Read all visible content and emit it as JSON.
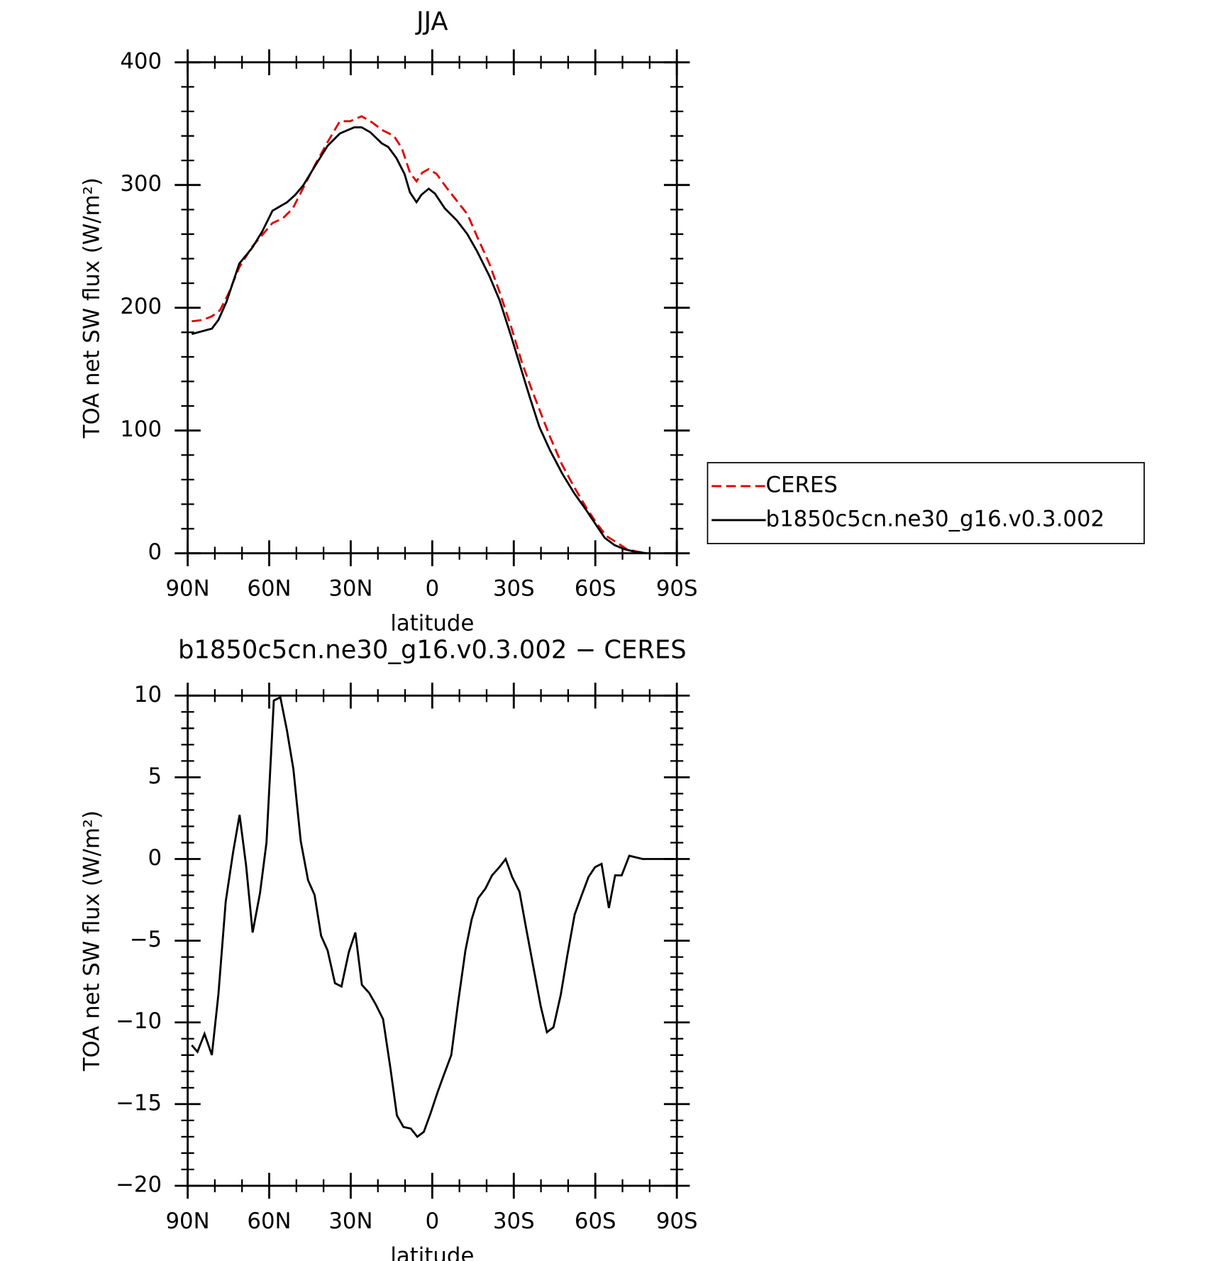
{
  "chart_data": [
    {
      "type": "line",
      "title": "JJA",
      "xlabel": "latitude",
      "ylabel": "TOA net SW flux (W/m²)",
      "xlim": [
        90,
        -90
      ],
      "xticks": [
        {
          "value": 90,
          "label": "90N"
        },
        {
          "value": 60,
          "label": "60N"
        },
        {
          "value": 30,
          "label": "30N"
        },
        0,
        {
          "value": -30,
          "label": "30S"
        },
        {
          "value": -60,
          "label": "60S"
        },
        {
          "value": -90,
          "label": "90S"
        }
      ],
      "xminorticks": [
        80,
        70,
        50,
        40,
        20,
        10,
        -10,
        -20,
        -40,
        -50,
        -70,
        -80
      ],
      "ylim": [
        0,
        400
      ],
      "yticks": [
        0,
        100,
        200,
        300,
        400
      ],
      "yminorticks": [
        20,
        40,
        60,
        80,
        120,
        140,
        160,
        180,
        220,
        240,
        260,
        280,
        320,
        340,
        360,
        380
      ],
      "legend": "right",
      "series": [
        {
          "name": "CERES",
          "color": "#e00000",
          "dashed": true,
          "x": [
            88.5,
            84.6,
            81.1,
            78.1,
            75.1,
            71.0,
            66.2,
            62.3,
            58.8,
            54.9,
            51.3,
            47.4,
            43.0,
            38.5,
            34.0,
            30.2,
            26.0,
            22.1,
            18.6,
            14.1,
            11.2,
            8.2,
            5.8,
            3.7,
            1.3,
            -1.6,
            -5.2,
            -9.1,
            -13.0,
            -16.5,
            -21.0,
            -24.9,
            -29.1,
            -32.9,
            -36.5,
            -39.8,
            -43.3,
            -47.8,
            -52.2,
            -56.7,
            -60.6,
            -64.1,
            -67.7,
            -71.6,
            -75.4,
            -79.0
          ],
          "values": [
            189,
            190,
            193,
            198,
            211,
            233,
            250,
            260,
            269,
            273,
            281,
            298,
            317,
            335,
            352,
            352,
            356,
            351,
            345,
            340,
            330,
            310,
            303,
            310,
            313,
            309,
            298,
            287,
            276,
            258,
            236,
            212,
            184,
            156,
            134,
            115,
            95,
            72,
            54,
            37,
            24,
            14,
            9,
            3.3,
            1.3,
            0
          ]
        },
        {
          "name": "b1850c5cn.ne30_g16.v0.3.002",
          "color": "#000000",
          "dashed": false,
          "x": [
            88.5,
            86.1,
            81.1,
            78.7,
            75.7,
            71.0,
            66.2,
            62.6,
            58.8,
            53.4,
            50.4,
            47.4,
            43.0,
            38.5,
            34.0,
            28.7,
            26.0,
            22.8,
            18.6,
            16.2,
            13.2,
            10.2,
            8.2,
            5.8,
            4.0,
            1.3,
            -1.0,
            -4.6,
            -9.1,
            -12.9,
            -16.5,
            -21.0,
            -24.8,
            -29.0,
            -32.3,
            -35.9,
            -39.4,
            -43.3,
            -47.8,
            -52.2,
            -56.7,
            -60.6,
            -63.5,
            -67.1,
            -70.7,
            -74.5,
            -79.0
          ],
          "values": [
            178.6,
            180,
            183,
            190,
            205,
            236,
            249,
            262,
            279,
            286,
            292,
            300,
            316,
            332,
            342,
            347,
            347,
            343,
            334,
            331,
            322,
            309,
            294,
            286,
            292,
            297,
            293,
            281,
            271,
            260,
            246,
            226,
            206,
            177,
            153,
            127,
            103,
            84,
            65,
            49,
            35,
            22,
            12.5,
            6.6,
            3.3,
            1.3,
            0
          ]
        }
      ]
    },
    {
      "type": "line",
      "title": "b1850c5cn.ne30_g16.v0.3.002 − CERES",
      "xlabel": "latitude",
      "ylabel": "TOA net SW flux (W/m²)",
      "xlim": [
        90,
        -90
      ],
      "xticks": [
        {
          "value": 90,
          "label": "90N"
        },
        {
          "value": 60,
          "label": "60N"
        },
        {
          "value": 30,
          "label": "30N"
        },
        0,
        {
          "value": -30,
          "label": "30S"
        },
        {
          "value": -60,
          "label": "60S"
        },
        {
          "value": -90,
          "label": "90S"
        }
      ],
      "xminorticks": [
        80,
        70,
        50,
        40,
        20,
        10,
        -10,
        -20,
        -40,
        -50,
        -70,
        -80
      ],
      "ylim": [
        -20,
        10
      ],
      "yticks": [
        {
          "value": -20,
          "label": "−20"
        },
        {
          "value": -15,
          "label": "−15"
        },
        {
          "value": -10,
          "label": "−10"
        },
        {
          "value": -5,
          "label": "−5"
        },
        0,
        5,
        10
      ],
      "yminorticks": [
        -19,
        -18,
        -17,
        -16,
        -14,
        -13,
        -12,
        -11,
        -9,
        -8,
        -7,
        -6,
        -4,
        -3,
        -2,
        -1,
        1,
        2,
        3,
        4,
        6,
        7,
        8,
        9
      ],
      "color": "#000000",
      "x": [
        88.5,
        86.4,
        83.8,
        81.1,
        78.7,
        76.0,
        73.3,
        70.9,
        68.5,
        66.1,
        63.4,
        61.0,
        58.3,
        55.9,
        53.5,
        51.1,
        48.4,
        45.7,
        43.3,
        40.9,
        38.5,
        35.8,
        33.4,
        30.7,
        28.3,
        25.9,
        23.2,
        20.8,
        18.1,
        15.4,
        13.0,
        10.6,
        7.9,
        5.5,
        3.1,
        0.7,
        -1.9,
        -4.3,
        -7.0,
        -9.5,
        -12.2,
        -14.5,
        -16.9,
        -19.6,
        -22.0,
        -24.7,
        -27.0,
        -29.4,
        -32.1,
        -34.5,
        -37.2,
        -39.9,
        -42.2,
        -44.6,
        -47.3,
        -49.7,
        -52.4,
        -54.8,
        -57.5,
        -59.9,
        -62.3,
        -65.0,
        -67.3,
        -69.7,
        -72.5,
        -75.0,
        -77.4,
        -80.1,
        -82.5,
        -85.2,
        -88.8
      ],
      "values": [
        -11.4,
        -11.8,
        -10.7,
        -12,
        -8.3,
        -2.6,
        0.4,
        2.7,
        -0.4,
        -4.5,
        -2.1,
        1,
        9.7,
        9.9,
        7.9,
        5.5,
        1.1,
        -1.3,
        -2.2,
        -4.7,
        -5.6,
        -7.6,
        -7.8,
        -5.7,
        -4.5,
        -7.7,
        -8.2,
        -8.9,
        -9.8,
        -12.8,
        -15.7,
        -16.4,
        -16.5,
        -17,
        -16.7,
        -15.6,
        -14.3,
        -13.2,
        -12,
        -8.8,
        -5.6,
        -3.7,
        -2.4,
        -1.8,
        -1,
        -0.5,
        0,
        -1.1,
        -2,
        -4.2,
        -6.6,
        -9,
        -10.6,
        -10.3,
        -8.3,
        -5.9,
        -3.4,
        -2.3,
        -1.1,
        -0.5,
        -0.3,
        -3,
        -1,
        -1,
        0.2,
        0.1,
        0,
        0,
        0,
        0,
        0
      ]
    }
  ]
}
